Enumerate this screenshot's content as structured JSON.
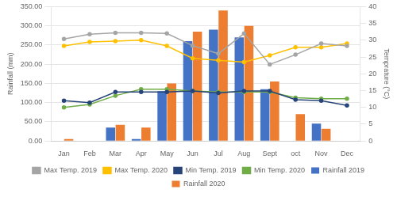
{
  "chart_data": {
    "type": "bar",
    "categories": [
      "Jan",
      "Feb",
      "Mar",
      "Apr",
      "May",
      "Jun",
      "Jul",
      "Aug",
      "Sept",
      "oct",
      "Nov",
      "Dec"
    ],
    "series": [
      {
        "name": "Rainfall 2019",
        "type": "bar",
        "color": "#4472C4",
        "values": [
          0,
          0,
          35,
          5,
          130,
          260,
          290,
          270,
          135,
          0,
          45,
          0
        ]
      },
      {
        "name": "Rainfall 2020",
        "type": "bar",
        "color": "#ED7D31",
        "values": [
          5,
          0,
          42,
          35,
          150,
          285,
          340,
          300,
          155,
          70,
          32,
          0
        ]
      },
      {
        "name": "Max Temp. 2019",
        "type": "line",
        "axis": "y2",
        "marker": "circle",
        "color": "#A5A5A5",
        "values": [
          30.4,
          31.8,
          32.2,
          32.2,
          32.0,
          28.4,
          26.0,
          32.0,
          22.8,
          25.7,
          29.0,
          28.3
        ]
      },
      {
        "name": "Max Temp. 2020",
        "type": "line",
        "axis": "y2",
        "marker": "circle",
        "color": "#FFC000",
        "values": [
          28.3,
          29.5,
          29.7,
          30.0,
          28.3,
          24.6,
          24.0,
          23.5,
          25.5,
          27.9,
          27.9,
          29.0
        ]
      },
      {
        "name": "Min Temp. 2019",
        "type": "line",
        "axis": "y2",
        "marker": "circle",
        "color": "#264478",
        "values": [
          12.0,
          11.4,
          14.6,
          14.6,
          14.6,
          14.9,
          14.3,
          14.9,
          14.9,
          12.3,
          12.0,
          10.6
        ]
      },
      {
        "name": "Min Temp. 2020",
        "type": "line",
        "axis": "y2",
        "marker": "circle",
        "color": "#70AD47",
        "values": [
          10.0,
          10.9,
          13.5,
          15.4,
          15.4,
          14.9,
          14.6,
          14.6,
          14.6,
          12.9,
          12.6,
          12.6
        ]
      }
    ],
    "ylabel": "Rainfall (mm)",
    "y2label": "Temprature (°C)",
    "ylim": [
      0,
      350
    ],
    "yticks": [
      {
        "value": 0,
        "label": "0.00"
      },
      {
        "value": 50,
        "label": "50.00"
      },
      {
        "value": 100,
        "label": "100.00"
      },
      {
        "value": 150,
        "label": "150.00"
      },
      {
        "value": 200,
        "label": "200.00"
      },
      {
        "value": 250,
        "label": "250.00"
      },
      {
        "value": 300,
        "label": "300.00"
      },
      {
        "value": 350,
        "label": "350.00"
      }
    ],
    "y2lim": [
      0,
      40
    ],
    "y2ticks": [
      0,
      5,
      10,
      15,
      20,
      25,
      30,
      35,
      40
    ],
    "grid": true,
    "legend": "bottom"
  }
}
